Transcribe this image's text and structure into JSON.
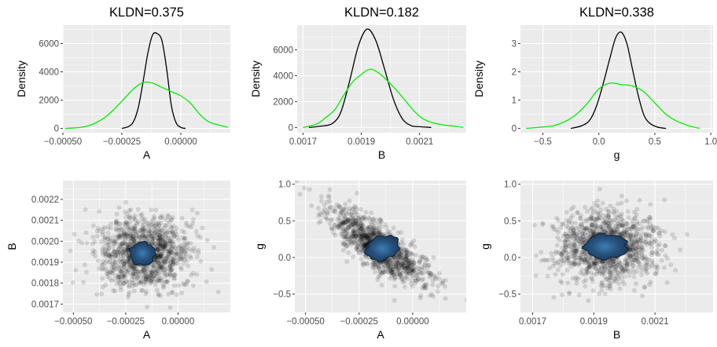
{
  "chart_data": [
    {
      "type": "line",
      "title": "KLDN=0.375",
      "xlabel": "A",
      "ylabel": "Density",
      "xlim": [
        -0.0005,
        0.00021
      ],
      "ylim": [
        -300,
        7300
      ],
      "xticks": [
        -0.0005,
        -0.00025,
        0.0
      ],
      "xtick_labels": [
        "-0.00050",
        "-0.00025",
        "0.00000"
      ],
      "yticks": [
        0,
        2000,
        4000,
        6000
      ],
      "ytick_labels": [
        "0",
        "2000",
        "4000",
        "6000"
      ],
      "grid": true,
      "series": [
        {
          "color": "#000000",
          "x": [
            -0.00025,
            -0.00022,
            -0.0002,
            -0.00018,
            -0.00016,
            -0.00014,
            -0.00012,
            -0.0001,
            -8e-05,
            -6e-05,
            -4e-05,
            -2e-05,
            0.0,
            2e-05
          ],
          "y": [
            0,
            150,
            500,
            1500,
            3300,
            5300,
            6600,
            6700,
            6200,
            4200,
            1600,
            400,
            80,
            0
          ]
        },
        {
          "color": "#00ee00",
          "x": [
            -0.00049,
            -0.00044,
            -0.0004,
            -0.00036,
            -0.00032,
            -0.00028,
            -0.00024,
            -0.0002,
            -0.00016,
            -0.00012,
            -8e-05,
            -4e-05,
            0.0,
            4e-05,
            8e-05,
            0.00012,
            0.00016,
            0.0002
          ],
          "y": [
            0,
            50,
            150,
            400,
            800,
            1400,
            2100,
            2800,
            3250,
            3200,
            2900,
            2600,
            2300,
            1800,
            1000,
            450,
            250,
            80
          ]
        }
      ]
    },
    {
      "type": "line",
      "title": "KLDN=0.182",
      "xlabel": "B",
      "ylabel": "Density",
      "xlim": [
        0.00168,
        0.00226
      ],
      "ylim": [
        -400,
        7900
      ],
      "xticks": [
        0.0017,
        0.0019,
        0.0021
      ],
      "xtick_labels": [
        "0.0017",
        "0.0019",
        "0.0021"
      ],
      "yticks": [
        0,
        2000,
        4000,
        6000
      ],
      "ytick_labels": [
        "0",
        "2000",
        "4000",
        "6000"
      ],
      "grid": true,
      "series": [
        {
          "color": "#000000",
          "x": [
            0.00172,
            0.00176,
            0.0018,
            0.00183,
            0.00186,
            0.00189,
            0.00192,
            0.00195,
            0.00198,
            0.00201,
            0.00204,
            0.00207,
            0.0021,
            0.00214
          ],
          "y": [
            0,
            100,
            300,
            1200,
            3600,
            6300,
            7600,
            6700,
            4500,
            2200,
            700,
            150,
            60,
            0
          ]
        },
        {
          "color": "#00ee00",
          "x": [
            0.0017,
            0.00172,
            0.00175,
            0.00178,
            0.00181,
            0.00184,
            0.00187,
            0.0019,
            0.00193,
            0.00196,
            0.00199,
            0.00202,
            0.00205,
            0.00208,
            0.00211,
            0.00214,
            0.00218,
            0.00222,
            0.00225
          ],
          "y": [
            0,
            100,
            300,
            800,
            1400,
            2500,
            3500,
            4100,
            4500,
            4200,
            3600,
            2900,
            2100,
            1300,
            700,
            400,
            200,
            100,
            0
          ]
        }
      ]
    },
    {
      "type": "line",
      "title": "KLDN=0.338",
      "xlabel": "g",
      "ylabel": "Density",
      "xlim": [
        -0.7,
        1.02
      ],
      "ylim": [
        -0.15,
        3.65
      ],
      "xticks": [
        -0.5,
        0.0,
        0.5,
        1.0
      ],
      "xtick_labels": [
        "-0.5",
        "0.0",
        "0.5",
        "1.0"
      ],
      "yticks": [
        0,
        1,
        2,
        3
      ],
      "ytick_labels": [
        "0",
        "1",
        "2",
        "3"
      ],
      "grid": true,
      "series": [
        {
          "color": "#000000",
          "x": [
            -0.25,
            -0.15,
            -0.08,
            -0.02,
            0.04,
            0.1,
            0.15,
            0.2,
            0.25,
            0.3,
            0.35,
            0.4,
            0.45,
            0.52,
            0.6
          ],
          "y": [
            0,
            0.1,
            0.3,
            0.8,
            1.6,
            2.5,
            3.2,
            3.4,
            3.0,
            2.1,
            1.2,
            0.5,
            0.2,
            0.05,
            0
          ]
        },
        {
          "color": "#00ee00",
          "x": [
            -0.65,
            -0.5,
            -0.4,
            -0.3,
            -0.2,
            -0.1,
            0.0,
            0.1,
            0.2,
            0.3,
            0.4,
            0.5,
            0.6,
            0.7,
            0.8,
            0.9
          ],
          "y": [
            0,
            0.05,
            0.1,
            0.25,
            0.5,
            0.9,
            1.4,
            1.6,
            1.55,
            1.5,
            1.3,
            0.9,
            0.5,
            0.25,
            0.1,
            0
          ]
        }
      ]
    },
    {
      "type": "scatter",
      "xlabel": "A",
      "ylabel": "B",
      "xlim": [
        -0.00055,
        0.00025
      ],
      "ylim": [
        0.00166,
        0.00229
      ],
      "xticks": [
        -0.0005,
        -0.00025,
        0.0
      ],
      "xtick_labels": [
        "-0.00050",
        "-0.00025",
        "0.00000"
      ],
      "yticks": [
        0.0017,
        0.0018,
        0.0019,
        0.002,
        0.0021,
        0.0022
      ],
      "ytick_labels": [
        "0.0017",
        "0.0018",
        "0.0019",
        "0.0020",
        "0.0021",
        "0.0022"
      ],
      "grid": true,
      "points": {
        "color": "#000000",
        "opacity": 0.12,
        "count": 1200,
        "center_x": -0.00016,
        "center_y": 0.00194,
        "spread_x": 0.00011,
        "spread_y": 8.5e-05,
        "correlation": 0.0
      },
      "overlay": {
        "color": "#1b3a5c",
        "highlight": "#3d7eb5",
        "center_x": -0.00017,
        "center_y": 0.00194,
        "radius_x": 6e-05,
        "radius_y": 5.5e-05
      }
    },
    {
      "type": "scatter",
      "xlabel": "A",
      "ylabel": "g",
      "xlim": [
        -0.00055,
        0.00025
      ],
      "ylim": [
        -0.75,
        1.05
      ],
      "xticks": [
        -0.0005,
        -0.00025,
        0.0
      ],
      "xtick_labels": [
        "-0.00050",
        "-0.00025",
        "0.00000"
      ],
      "yticks": [
        -0.5,
        0.0,
        0.5,
        1.0
      ],
      "ytick_labels": [
        "-0.5",
        "0.0",
        "0.5",
        "1.0"
      ],
      "grid": true,
      "points": {
        "color": "#000000",
        "opacity": 0.12,
        "count": 1200,
        "center_x": -0.00016,
        "center_y": 0.15,
        "spread_x": 0.00011,
        "spread_y": 0.25,
        "correlation": -0.8
      },
      "overlay": {
        "color": "#1b3a5c",
        "highlight": "#3d7eb5",
        "center_x": -0.00014,
        "center_y": 0.13,
        "radius_x": 8e-05,
        "radius_y": 0.16,
        "tilt": -0.35
      }
    },
    {
      "type": "scatter",
      "xlabel": "B",
      "ylabel": "g",
      "xlim": [
        0.00166,
        0.00229
      ],
      "ylim": [
        -0.75,
        1.05
      ],
      "xticks": [
        0.0017,
        0.0019,
        0.0021
      ],
      "xtick_labels": [
        "0.0017",
        "0.0019",
        "0.0021"
      ],
      "yticks": [
        -0.5,
        0.0,
        0.5,
        1.0
      ],
      "ytick_labels": [
        "-0.5",
        "0.0",
        "0.5",
        "1.0"
      ],
      "grid": true,
      "points": {
        "color": "#000000",
        "opacity": 0.12,
        "count": 1200,
        "center_x": 0.00194,
        "center_y": 0.15,
        "spread_x": 8.5e-05,
        "spread_y": 0.25,
        "correlation": -0.05
      },
      "overlay": {
        "color": "#1b3a5c",
        "highlight": "#3d7eb5",
        "center_x": 0.00194,
        "center_y": 0.15,
        "radius_x": 7e-05,
        "radius_y": 0.17
      }
    }
  ]
}
